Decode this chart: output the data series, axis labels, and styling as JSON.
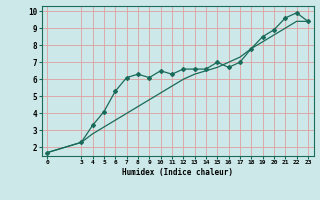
{
  "xlabel": "Humidex (Indice chaleur)",
  "x_line1": [
    0,
    3,
    4,
    5,
    6,
    7,
    8,
    9,
    10,
    11,
    12,
    13,
    14,
    15,
    16,
    17,
    18,
    19,
    20,
    21,
    22,
    23
  ],
  "y_line1": [
    1.7,
    2.3,
    3.3,
    4.1,
    5.3,
    6.1,
    6.3,
    6.1,
    6.5,
    6.3,
    6.6,
    6.6,
    6.6,
    7.0,
    6.7,
    7.0,
    7.8,
    8.5,
    8.9,
    9.6,
    9.9,
    9.4
  ],
  "x_line2": [
    0,
    3,
    4,
    5,
    6,
    7,
    8,
    9,
    10,
    11,
    12,
    13,
    14,
    15,
    16,
    17,
    18,
    19,
    20,
    21,
    22,
    23
  ],
  "y_line2": [
    1.7,
    2.3,
    2.8,
    3.2,
    3.6,
    4.0,
    4.4,
    4.8,
    5.2,
    5.6,
    6.0,
    6.3,
    6.5,
    6.7,
    7.0,
    7.3,
    7.8,
    8.2,
    8.6,
    9.0,
    9.4,
    9.4
  ],
  "line_color": "#1a6b5a",
  "bg_color": "#cce8e8",
  "grid_color": "#dfa0a0",
  "xlim": [
    -0.5,
    23.5
  ],
  "ylim": [
    1.5,
    10.3
  ],
  "xticks": [
    0,
    3,
    4,
    5,
    6,
    7,
    8,
    9,
    10,
    11,
    12,
    13,
    14,
    15,
    16,
    17,
    18,
    19,
    20,
    21,
    22,
    23
  ],
  "yticks": [
    2,
    3,
    4,
    5,
    6,
    7,
    8,
    9,
    10
  ],
  "marker": "D",
  "marker_size": 2.0,
  "line_width": 0.9
}
